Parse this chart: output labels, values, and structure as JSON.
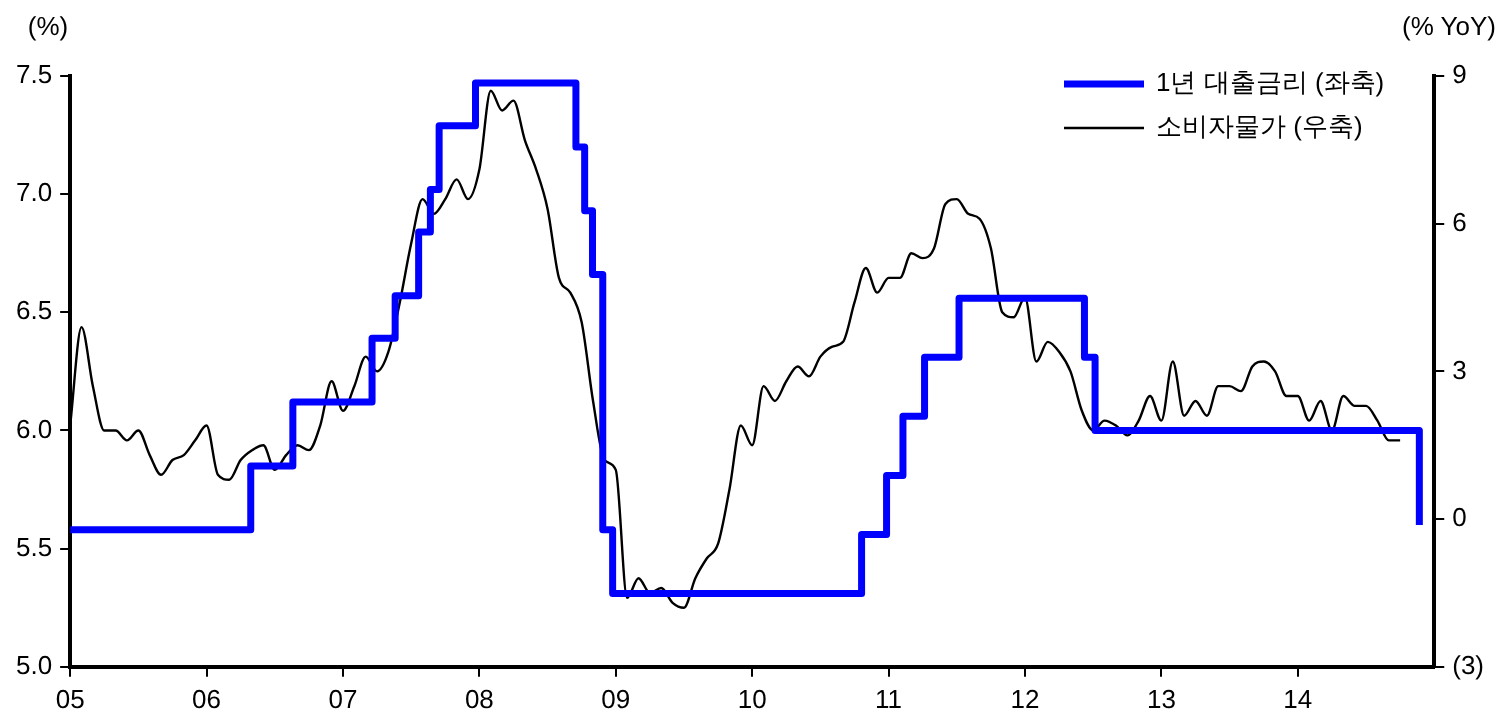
{
  "chart_data": {
    "type": "line",
    "ylabel": "(%)",
    "y2label": "(% YoY)",
    "xlim": [
      "2005-01",
      "2015-01"
    ],
    "xticks": [
      {
        "value": "2005",
        "label": "05"
      },
      {
        "value": "2006",
        "label": "06"
      },
      {
        "value": "2007",
        "label": "07"
      },
      {
        "value": "2008",
        "label": "08"
      },
      {
        "value": "2009",
        "label": "09"
      },
      {
        "value": "2010",
        "label": "10"
      },
      {
        "value": "2011",
        "label": "11"
      },
      {
        "value": "2012",
        "label": "12"
      },
      {
        "value": "2013",
        "label": "13"
      },
      {
        "value": "2014",
        "label": "14"
      }
    ],
    "ylim": [
      5,
      7.5
    ],
    "yticks": [
      {
        "value": 5,
        "label": "5.0"
      },
      {
        "value": 5.5,
        "label": "5.5"
      },
      {
        "value": 6,
        "label": "6.0"
      },
      {
        "value": 6.5,
        "label": "6.5"
      },
      {
        "value": 7,
        "label": "7.0"
      },
      {
        "value": 7.5,
        "label": "7.5"
      }
    ],
    "y2lim": [
      -3,
      9
    ],
    "y2ticks": [
      {
        "value": -3,
        "label": "(3)"
      },
      0,
      3,
      6,
      9
    ],
    "legend": "top right",
    "grid": false,
    "series": [
      {
        "name": "1년 대출금리 (좌축)",
        "type": "step",
        "color": "#0000ff",
        "x": [
          "2005-01-01",
          "2006-04-28",
          "2006-08-19",
          "2007-03-18",
          "2007-05-19",
          "2007-07-21",
          "2007-08-22",
          "2007-09-15",
          "2007-12-21",
          "2008-09-16",
          "2008-10-09",
          "2008-10-30",
          "2008-11-27",
          "2008-12-23",
          "2010-10-20",
          "2010-12-26",
          "2011-02-09",
          "2011-04-06",
          "2011-07-07",
          "2012-06-08",
          "2012-07-06",
          "2014-11-22"
        ],
        "values": [
          5.58,
          5.85,
          6.12,
          6.39,
          6.57,
          6.84,
          7.02,
          7.29,
          7.47,
          7.2,
          6.93,
          6.66,
          5.58,
          5.31,
          5.56,
          5.81,
          6.06,
          6.31,
          6.56,
          6.31,
          6.0,
          5.6
        ]
      },
      {
        "name": "소비자물가 (우축)",
        "type": "line",
        "axis": "y2",
        "color": "#000000",
        "x": [
          "2005-01",
          "2005-02",
          "2005-03",
          "2005-04",
          "2005-05",
          "2005-06",
          "2005-07",
          "2005-08",
          "2005-09",
          "2005-10",
          "2005-11",
          "2005-12",
          "2006-01",
          "2006-02",
          "2006-03",
          "2006-04",
          "2006-05",
          "2006-06",
          "2006-07",
          "2006-08",
          "2006-09",
          "2006-10",
          "2006-11",
          "2006-12",
          "2007-01",
          "2007-02",
          "2007-03",
          "2007-04",
          "2007-05",
          "2007-06",
          "2007-07",
          "2007-08",
          "2007-09",
          "2007-10",
          "2007-11",
          "2007-12",
          "2008-01",
          "2008-02",
          "2008-03",
          "2008-04",
          "2008-05",
          "2008-06",
          "2008-07",
          "2008-08",
          "2008-09",
          "2008-10",
          "2008-11",
          "2008-12",
          "2009-01",
          "2009-02",
          "2009-03",
          "2009-04",
          "2009-05",
          "2009-06",
          "2009-07",
          "2009-08",
          "2009-09",
          "2009-10",
          "2009-11",
          "2009-12",
          "2010-01",
          "2010-02",
          "2010-03",
          "2010-04",
          "2010-05",
          "2010-06",
          "2010-07",
          "2010-08",
          "2010-09",
          "2010-10",
          "2010-11",
          "2010-12",
          "2011-01",
          "2011-02",
          "2011-03",
          "2011-04",
          "2011-05",
          "2011-06",
          "2011-07",
          "2011-08",
          "2011-09",
          "2011-10",
          "2011-11",
          "2011-12",
          "2012-01",
          "2012-02",
          "2012-03",
          "2012-04",
          "2012-05",
          "2012-06",
          "2012-07",
          "2012-08",
          "2012-09",
          "2012-10",
          "2012-11",
          "2012-12",
          "2013-01",
          "2013-02",
          "2013-03",
          "2013-04",
          "2013-05",
          "2013-06",
          "2013-07",
          "2013-08",
          "2013-09",
          "2013-10",
          "2013-11",
          "2013-12",
          "2014-01",
          "2014-02",
          "2014-03",
          "2014-04",
          "2014-05",
          "2014-06",
          "2014-07",
          "2014-08",
          "2014-09",
          "2014-10"
        ],
        "values": [
          1.9,
          3.9,
          2.7,
          1.8,
          1.8,
          1.6,
          1.8,
          1.3,
          0.9,
          1.2,
          1.3,
          1.6,
          1.9,
          0.9,
          0.8,
          1.2,
          1.4,
          1.5,
          1.0,
          1.3,
          1.5,
          1.4,
          1.9,
          2.8,
          2.2,
          2.7,
          3.3,
          3.0,
          3.4,
          4.4,
          5.6,
          6.5,
          6.2,
          6.5,
          6.9,
          6.5,
          7.1,
          8.7,
          8.3,
          8.5,
          7.7,
          7.1,
          6.3,
          4.9,
          4.6,
          4.0,
          2.4,
          1.2,
          1.0,
          -1.6,
          -1.2,
          -1.5,
          -1.4,
          -1.7,
          -1.8,
          -1.2,
          -0.8,
          -0.5,
          0.6,
          1.9,
          1.5,
          2.7,
          2.4,
          2.8,
          3.1,
          2.9,
          3.3,
          3.5,
          3.6,
          4.4,
          5.1,
          4.6,
          4.9,
          4.9,
          5.4,
          5.3,
          5.5,
          6.4,
          6.5,
          6.2,
          6.1,
          5.5,
          4.2,
          4.1,
          4.5,
          3.2,
          3.6,
          3.4,
          3.0,
          2.2,
          1.8,
          2.0,
          1.9,
          1.7,
          2.0,
          2.5,
          2.0,
          3.2,
          2.1,
          2.4,
          2.1,
          2.7,
          2.7,
          2.6,
          3.1,
          3.2,
          3.0,
          2.5,
          2.5,
          2.0,
          2.4,
          1.8,
          2.5,
          2.3,
          2.3,
          2.0,
          1.6,
          1.6
        ]
      }
    ]
  }
}
